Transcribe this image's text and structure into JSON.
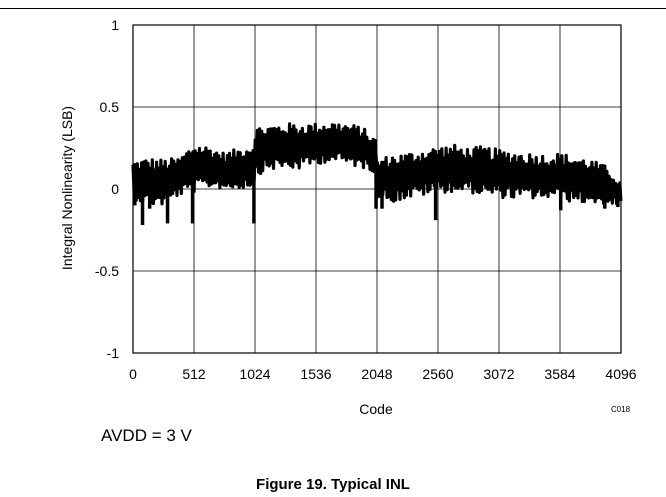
{
  "chart_data": {
    "type": "line",
    "xlabel": "Code",
    "ylabel": "Integral Nonlinearity (LSB)",
    "xlim": [
      0,
      4096
    ],
    "ylim": [
      -1,
      1
    ],
    "x_ticks": [
      "0",
      "512",
      "1024",
      "1536",
      "2048",
      "2560",
      "3072",
      "3584",
      "4096"
    ],
    "y_ticks": [
      "1",
      "0.5",
      "0",
      "-0.5",
      "-1"
    ],
    "grid": true,
    "series": [
      {
        "color": "#000000",
        "envelope": [
          {
            "x": 0,
            "low": -0.06,
            "high": 0.17
          },
          {
            "x": 128,
            "low": -0.1,
            "high": 0.19
          },
          {
            "x": 256,
            "low": -0.1,
            "high": 0.18
          },
          {
            "x": 384,
            "low": -0.04,
            "high": 0.19
          },
          {
            "x": 512,
            "low": -0.02,
            "high": 0.28
          },
          {
            "x": 640,
            "low": 0.01,
            "high": 0.26
          },
          {
            "x": 768,
            "low": 0.0,
            "high": 0.22
          },
          {
            "x": 896,
            "low": 0.0,
            "high": 0.25
          },
          {
            "x": 1023,
            "low": 0.02,
            "high": 0.28
          },
          {
            "x": 1024,
            "low": 0.08,
            "high": 0.38
          },
          {
            "x": 1152,
            "low": 0.12,
            "high": 0.39
          },
          {
            "x": 1280,
            "low": 0.12,
            "high": 0.4
          },
          {
            "x": 1408,
            "low": 0.12,
            "high": 0.4
          },
          {
            "x": 1536,
            "low": 0.15,
            "high": 0.4
          },
          {
            "x": 1664,
            "low": 0.17,
            "high": 0.41
          },
          {
            "x": 1792,
            "low": 0.15,
            "high": 0.4
          },
          {
            "x": 1920,
            "low": 0.13,
            "high": 0.38
          },
          {
            "x": 2047,
            "low": 0.1,
            "high": 0.3
          },
          {
            "x": 2048,
            "low": -0.05,
            "high": 0.18
          },
          {
            "x": 2176,
            "low": -0.08,
            "high": 0.21
          },
          {
            "x": 2304,
            "low": -0.06,
            "high": 0.22
          },
          {
            "x": 2432,
            "low": -0.04,
            "high": 0.24
          },
          {
            "x": 2560,
            "low": -0.02,
            "high": 0.26
          },
          {
            "x": 2688,
            "low": -0.02,
            "high": 0.27
          },
          {
            "x": 2816,
            "low": -0.02,
            "high": 0.25
          },
          {
            "x": 2944,
            "low": -0.04,
            "high": 0.26
          },
          {
            "x": 3072,
            "low": -0.05,
            "high": 0.24
          },
          {
            "x": 3200,
            "low": -0.06,
            "high": 0.23
          },
          {
            "x": 3328,
            "low": -0.06,
            "high": 0.22
          },
          {
            "x": 3456,
            "low": -0.06,
            "high": 0.21
          },
          {
            "x": 3584,
            "low": -0.07,
            "high": 0.22
          },
          {
            "x": 3712,
            "low": -0.08,
            "high": 0.2
          },
          {
            "x": 3840,
            "low": -0.09,
            "high": 0.18
          },
          {
            "x": 3968,
            "low": -0.09,
            "high": 0.14
          },
          {
            "x": 4095,
            "low": -0.1,
            "high": 0.04
          }
        ],
        "spikes": [
          {
            "x": 15,
            "y": -0.1
          },
          {
            "x": 80,
            "y": -0.22
          },
          {
            "x": 140,
            "y": -0.12
          },
          {
            "x": 290,
            "y": -0.21
          },
          {
            "x": 500,
            "y": -0.21
          },
          {
            "x": 1015,
            "y": -0.21
          },
          {
            "x": 2040,
            "y": -0.12
          },
          {
            "x": 2090,
            "y": -0.12
          },
          {
            "x": 2540,
            "y": -0.19
          },
          {
            "x": 3590,
            "y": -0.13
          },
          {
            "x": 3960,
            "y": -0.12
          },
          {
            "x": 4070,
            "y": -0.11
          }
        ]
      }
    ]
  },
  "chart_id": "C018",
  "condition": "AVDD = 3 V",
  "caption": "Figure 19. Typical INL"
}
